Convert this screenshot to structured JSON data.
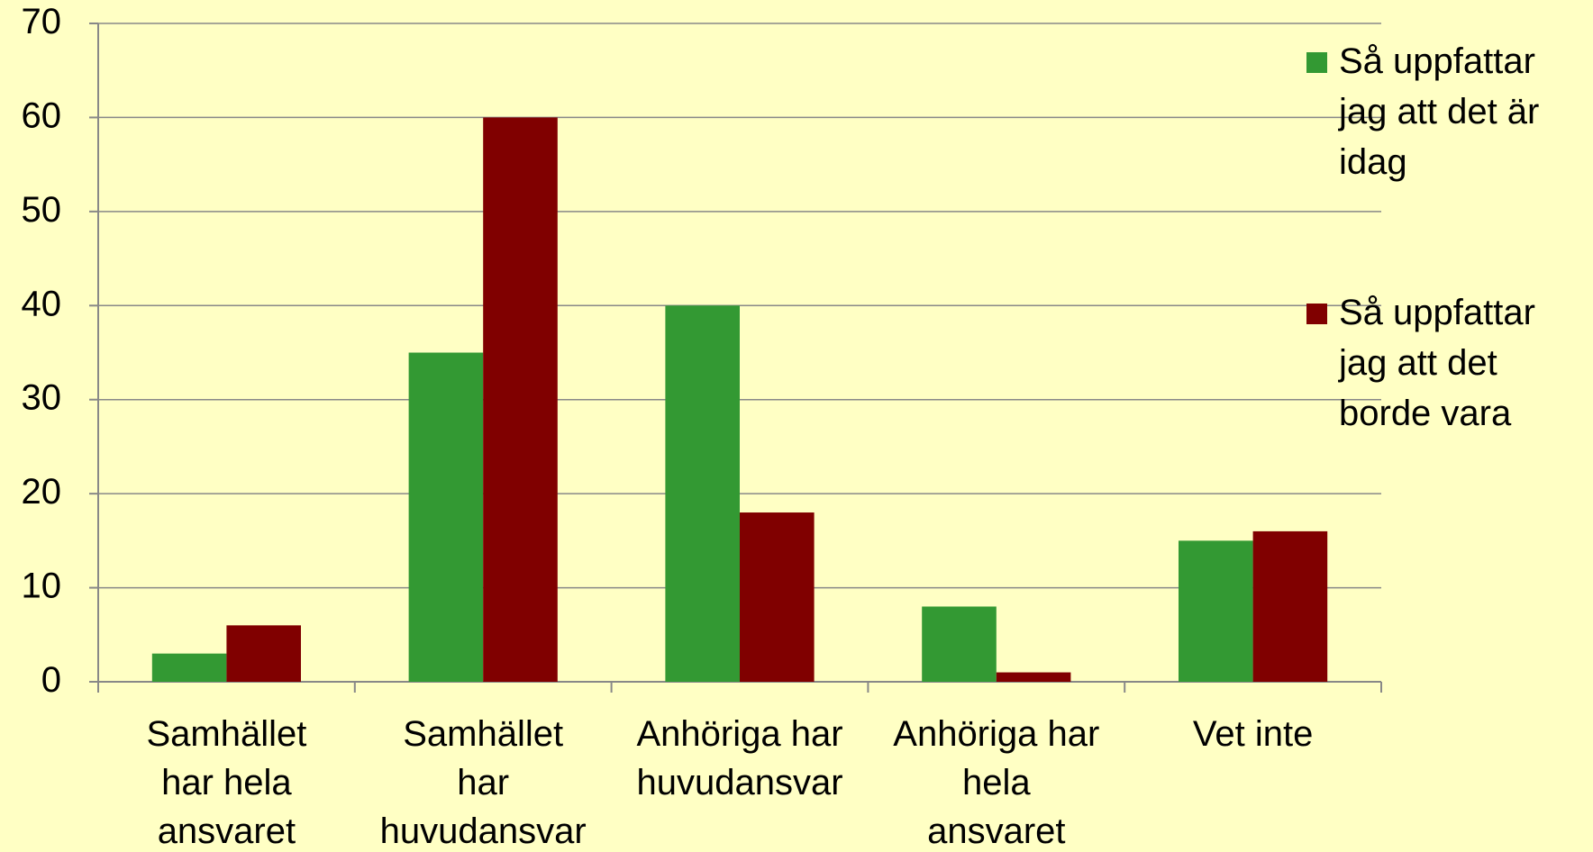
{
  "chart_data": {
    "type": "bar",
    "categories": [
      "Samhället\nhar hela\nansvaret",
      "Samhället\nhar\nhuvudansvar",
      "Anhöriga har\nhuvudansvar",
      "Anhöriga har\nhela\nansvaret",
      "Vet inte"
    ],
    "series": [
      {
        "name": "Så uppfattar\njag att det är\nidag",
        "color": "#339933",
        "values": [
          3,
          35,
          40,
          8,
          15
        ]
      },
      {
        "name": "Så uppfattar\njag att det\nborde vara",
        "color": "#800000",
        "values": [
          6,
          60,
          18,
          1,
          16
        ]
      }
    ],
    "ylim": [
      0,
      70
    ],
    "yticks": [
      0,
      10,
      20,
      30,
      40,
      50,
      60,
      70
    ],
    "grid": true,
    "legend": "right"
  }
}
